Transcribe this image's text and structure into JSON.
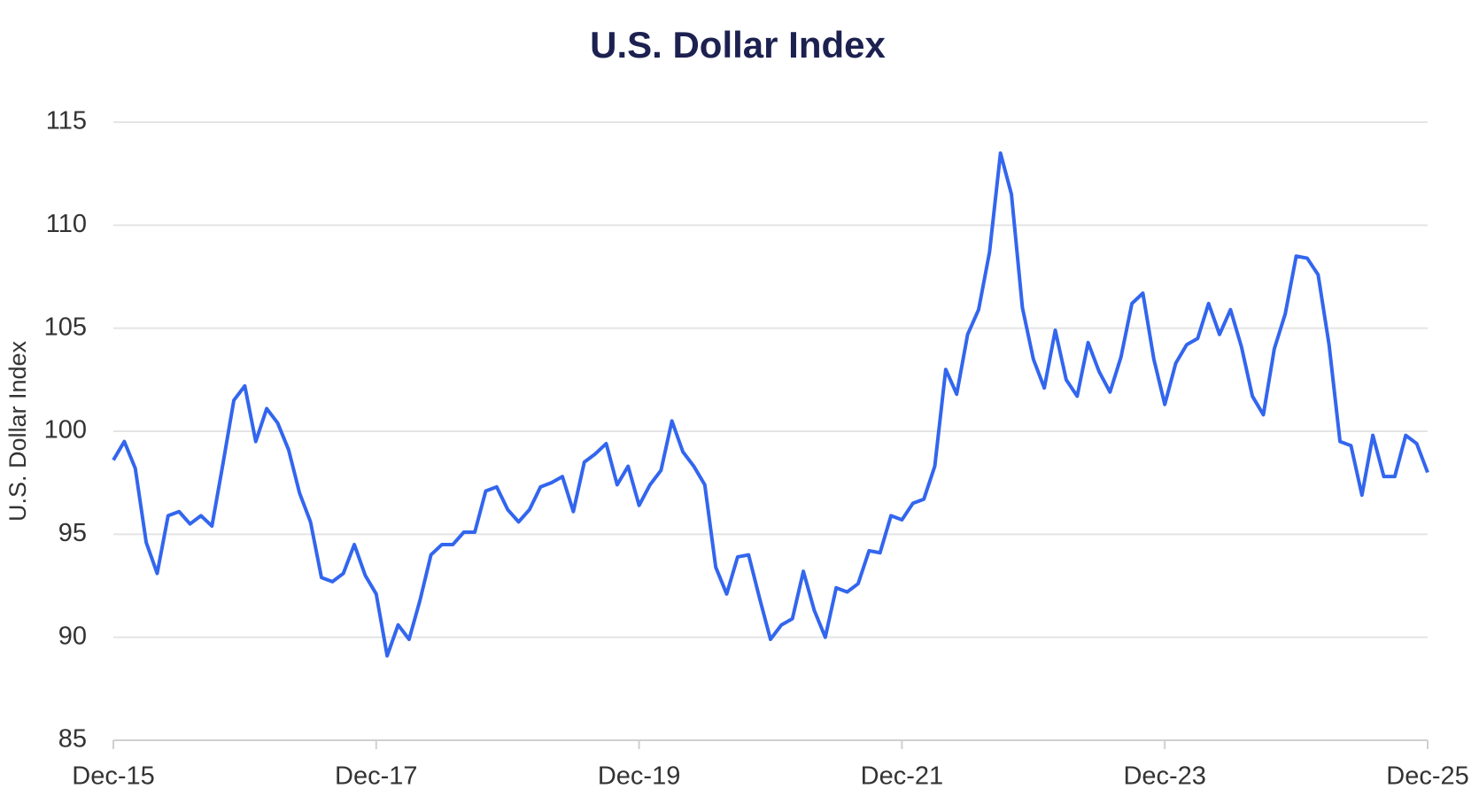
{
  "chart_data": {
    "type": "line",
    "title": "U.S. Dollar Index",
    "y_label": "U.S. Dollar Index",
    "x": [
      "2015-12",
      "2016-01",
      "2016-02",
      "2016-03",
      "2016-04",
      "2016-05",
      "2016-06",
      "2016-07",
      "2016-08",
      "2016-09",
      "2016-10",
      "2016-11",
      "2016-12",
      "2017-01",
      "2017-02",
      "2017-03",
      "2017-04",
      "2017-05",
      "2017-06",
      "2017-07",
      "2017-08",
      "2017-09",
      "2017-10",
      "2017-11",
      "2017-12",
      "2018-01",
      "2018-02",
      "2018-03",
      "2018-04",
      "2018-05",
      "2018-06",
      "2018-07",
      "2018-08",
      "2018-09",
      "2018-10",
      "2018-11",
      "2018-12",
      "2019-01",
      "2019-02",
      "2019-03",
      "2019-04",
      "2019-05",
      "2019-06",
      "2019-07",
      "2019-08",
      "2019-09",
      "2019-10",
      "2019-11",
      "2019-12",
      "2020-01",
      "2020-02",
      "2020-03",
      "2020-04",
      "2020-05",
      "2020-06",
      "2020-07",
      "2020-08",
      "2020-09",
      "2020-10",
      "2020-11",
      "2020-12",
      "2021-01",
      "2021-02",
      "2021-03",
      "2021-04",
      "2021-05",
      "2021-06",
      "2021-07",
      "2021-08",
      "2021-09",
      "2021-10",
      "2021-11",
      "2021-12",
      "2022-01",
      "2022-02",
      "2022-03",
      "2022-04",
      "2022-05",
      "2022-06",
      "2022-07",
      "2022-08",
      "2022-09",
      "2022-10",
      "2022-11",
      "2022-12",
      "2023-01",
      "2023-02",
      "2023-03",
      "2023-04",
      "2023-05",
      "2023-06",
      "2023-07",
      "2023-08",
      "2023-09",
      "2023-10",
      "2023-11",
      "2023-12",
      "2024-01",
      "2024-02",
      "2024-03",
      "2024-04",
      "2024-05",
      "2024-06",
      "2024-07",
      "2024-08",
      "2024-09",
      "2024-10",
      "2024-11",
      "2024-12",
      "2025-01",
      "2025-02",
      "2025-03",
      "2025-04",
      "2025-05",
      "2025-06",
      "2025-07",
      "2025-08",
      "2025-09",
      "2025-10",
      "2025-11",
      "2025-12"
    ],
    "series": [
      {
        "name": "U.S. Dollar Index",
        "color": "#3366ee",
        "values": [
          98.6,
          99.5,
          98.2,
          94.6,
          93.1,
          95.9,
          96.1,
          95.5,
          95.9,
          95.4,
          98.4,
          101.5,
          102.2,
          99.5,
          101.1,
          100.4,
          99.1,
          97.0,
          95.6,
          92.9,
          92.7,
          93.1,
          94.5,
          93.0,
          92.1,
          89.1,
          90.6,
          89.9,
          91.8,
          94.0,
          94.5,
          94.5,
          95.1,
          95.1,
          97.1,
          97.3,
          96.2,
          95.6,
          96.2,
          97.3,
          97.5,
          97.8,
          96.1,
          98.5,
          98.9,
          99.4,
          97.4,
          98.3,
          96.4,
          97.4,
          98.1,
          100.5,
          99.0,
          98.3,
          97.4,
          93.4,
          92.1,
          93.9,
          94.0,
          91.9,
          89.9,
          90.6,
          90.9,
          93.2,
          91.3,
          90.0,
          92.4,
          92.2,
          92.6,
          94.2,
          94.1,
          95.9,
          95.7,
          96.5,
          96.7,
          98.3,
          103.0,
          101.8,
          104.7,
          105.9,
          108.7,
          113.5,
          111.5,
          106.0,
          103.5,
          102.1,
          104.9,
          102.5,
          101.7,
          104.3,
          102.9,
          101.9,
          103.6,
          106.2,
          106.7,
          103.5,
          101.3,
          103.3,
          104.2,
          104.5,
          106.2,
          104.7,
          105.9,
          104.1,
          101.7,
          100.8,
          104.0,
          105.7,
          108.5,
          108.4,
          107.6,
          104.2,
          99.5,
          99.3,
          96.9,
          99.8,
          97.8,
          97.8,
          99.8,
          99.4,
          98.0
        ]
      }
    ],
    "xlim": [
      "2015-12",
      "2025-12"
    ],
    "xticks": [
      {
        "value": "2015-12",
        "label": "Dec-15"
      },
      {
        "value": "2017-12",
        "label": "Dec-17"
      },
      {
        "value": "2019-12",
        "label": "Dec-19"
      },
      {
        "value": "2021-12",
        "label": "Dec-21"
      },
      {
        "value": "2023-12",
        "label": "Dec-23"
      },
      {
        "value": "2025-12",
        "label": "Dec-25"
      }
    ],
    "ylim": [
      85,
      115
    ],
    "yticks": [
      85,
      90,
      95,
      100,
      105,
      110,
      115
    ],
    "grid": true
  }
}
